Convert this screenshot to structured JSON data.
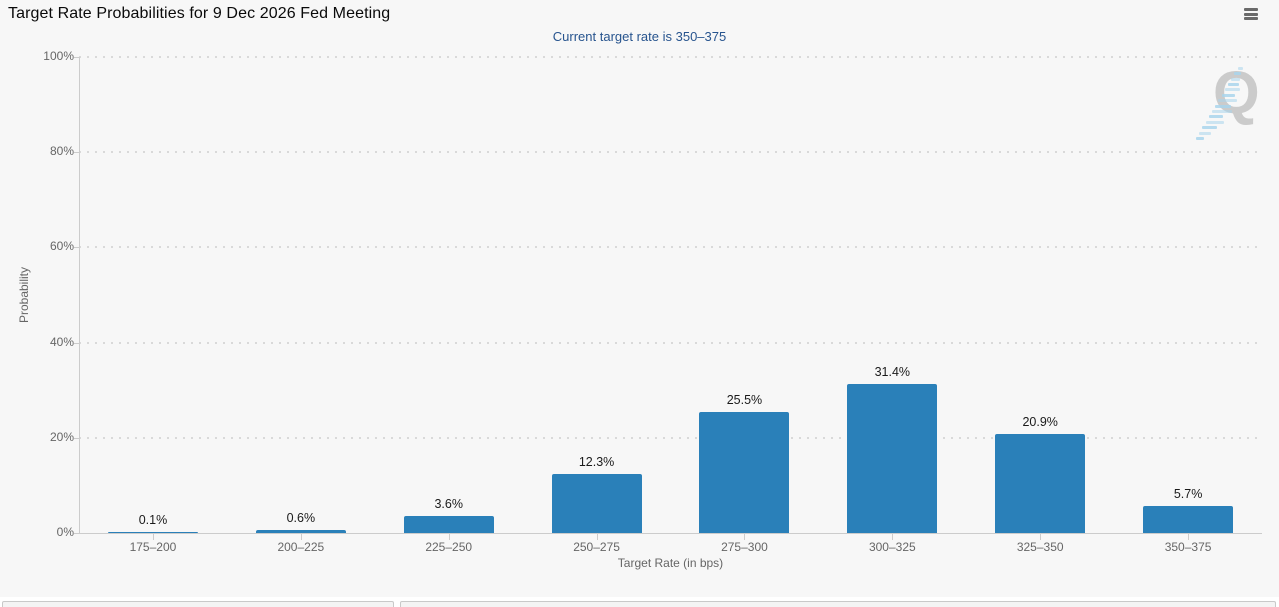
{
  "watermark": {
    "letter": "Q"
  },
  "menu": {
    "icon": "hamburger-icon"
  },
  "colors": {
    "bar": "#2a80b9",
    "chart_bg": "#f7f7f7",
    "title_text": "#0a0a0a",
    "subtitle_text": "#27548e",
    "axis_labels": "#666666",
    "data_labels": "#1a1a1a",
    "axis_line": "#cccccc",
    "gridline": "#d9d9d9",
    "watermark_q": "#cbcbcb",
    "watermark_bolt": "#a9d5ec",
    "menu_icon": "#6a6a6a"
  },
  "chart_data": {
    "type": "bar",
    "title": "Target Rate Probabilities for 9 Dec 2026 Fed Meeting",
    "subtitle": "Current target rate is 350–375",
    "categories": [
      "175–200",
      "200–225",
      "225–250",
      "250–275",
      "275–300",
      "300–325",
      "325–350",
      "350–375"
    ],
    "values": [
      0.1,
      0.6,
      3.6,
      12.3,
      25.5,
      31.4,
      20.9,
      5.7
    ],
    "value_labels": [
      "0.1%",
      "0.6%",
      "3.6%",
      "12.3%",
      "25.5%",
      "31.4%",
      "20.9%",
      "5.7%"
    ],
    "xlabel": "Target Rate (in bps)",
    "ylabel": "Probability",
    "ylim": [
      0,
      100
    ],
    "yticks": [
      0,
      20,
      40,
      60,
      80,
      100
    ],
    "ytick_labels": [
      "0%",
      "20%",
      "40%",
      "60%",
      "80%",
      "100%"
    ],
    "grid": "horizontal-dotted",
    "legend": "none",
    "bar_color": "#2a80b9"
  }
}
